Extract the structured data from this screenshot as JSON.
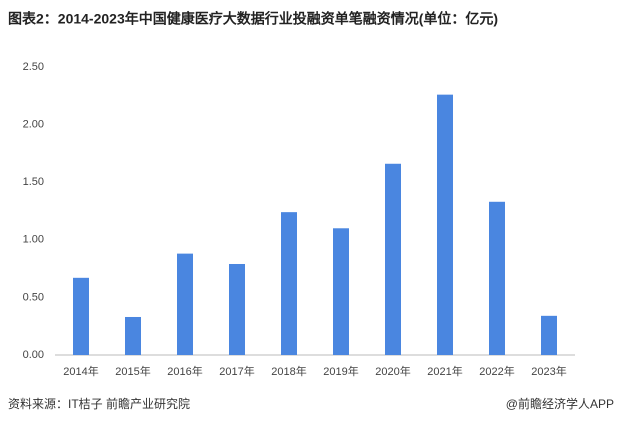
{
  "chart_data": {
    "type": "bar",
    "title": "图表2：2014-2023年中国健康医疗大数据行业投融资单笔融资情况(单位：亿元)",
    "categories": [
      "2014年",
      "2015年",
      "2016年",
      "2017年",
      "2018年",
      "2019年",
      "2020年",
      "2021年",
      "2022年",
      "2023年"
    ],
    "values": [
      0.67,
      0.33,
      0.88,
      0.79,
      1.24,
      1.1,
      1.66,
      2.26,
      1.33,
      0.34
    ],
    "color": "#4a86e0",
    "ylim": [
      0,
      2.5
    ],
    "yticks": [
      {
        "value": 0,
        "label": "0.00"
      },
      {
        "value": 0.5,
        "label": "0.50"
      },
      {
        "value": 1,
        "label": "1.00"
      },
      {
        "value": 1.5,
        "label": "1.50"
      },
      {
        "value": 2,
        "label": "2.00"
      },
      {
        "value": 2.5,
        "label": "2.50"
      }
    ],
    "grid": false,
    "source": "资料来源：IT桔子 前瞻产业研究院",
    "brand": "@前瞻经济学人APP"
  }
}
